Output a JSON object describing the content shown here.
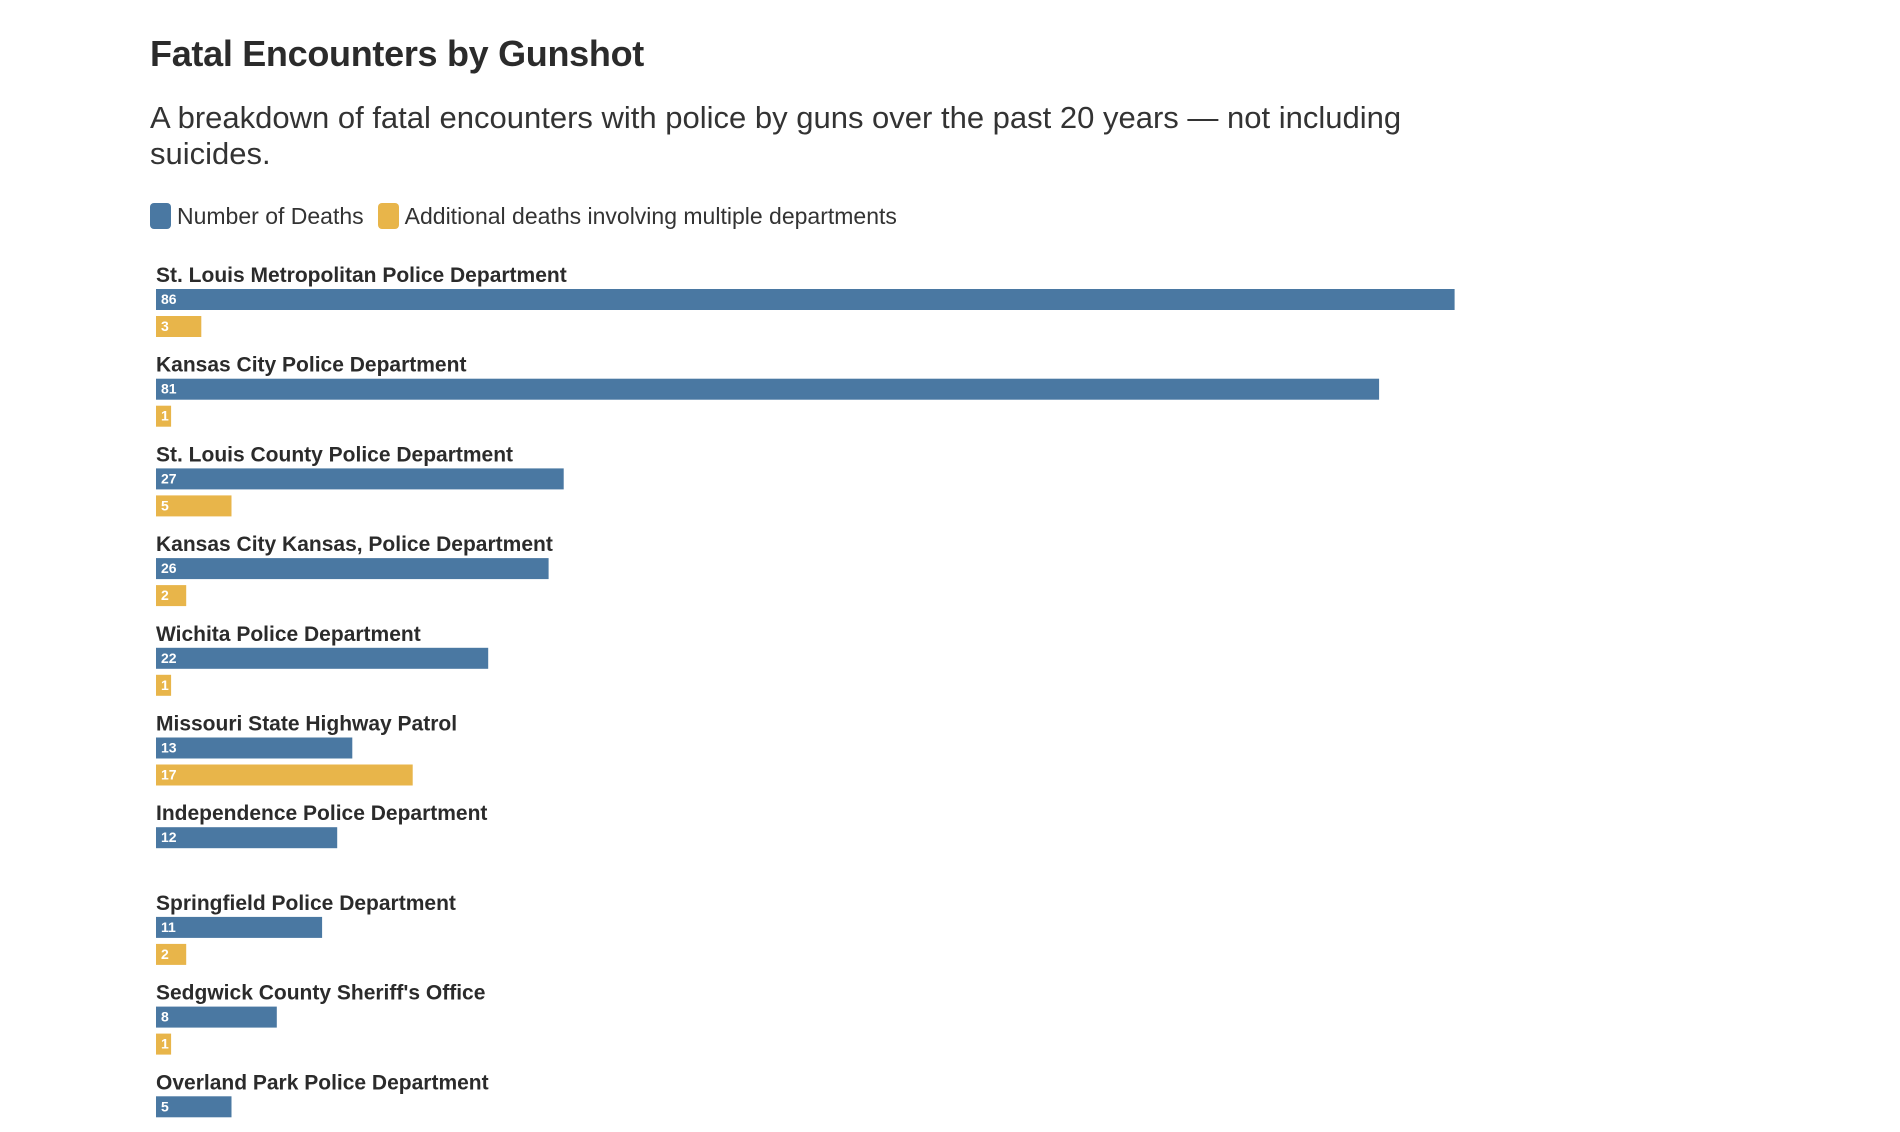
{
  "title": "Fatal Encounters by Gunshot",
  "subtitle": "A breakdown of fatal encounters with police by guns over the past 20 years — not including suicides.",
  "colors": {
    "deaths": "#4a78a2",
    "additional": "#e8b54a"
  },
  "legend": [
    {
      "label": "Number of Deaths",
      "color": "#4a78a2"
    },
    {
      "label": "Additional deaths involving multiple departments",
      "color": "#e8b54a"
    }
  ],
  "chart_data": {
    "type": "bar",
    "orientation": "horizontal",
    "title": "Fatal Encounters by Gunshot",
    "categories": [
      "St. Louis Metropolitan Police Department",
      "Kansas City Police Department",
      "St. Louis County Police Department",
      "Kansas City Kansas, Police Department",
      "Wichita Police Department",
      "Missouri State Highway Patrol",
      "Independence Police Department",
      "Springfield Police Department",
      "Sedgwick County Sheriff's Office",
      "Overland Park Police Department"
    ],
    "series": [
      {
        "name": "Number of Deaths",
        "values": [
          86,
          81,
          27,
          26,
          22,
          13,
          12,
          11,
          8,
          5
        ]
      },
      {
        "name": "Additional deaths involving multiple departments",
        "values": [
          3,
          1,
          5,
          2,
          1,
          17,
          null,
          2,
          1,
          null
        ]
      }
    ],
    "xlim": [
      0,
      86
    ],
    "grid": false,
    "legend_position": "top-left"
  }
}
